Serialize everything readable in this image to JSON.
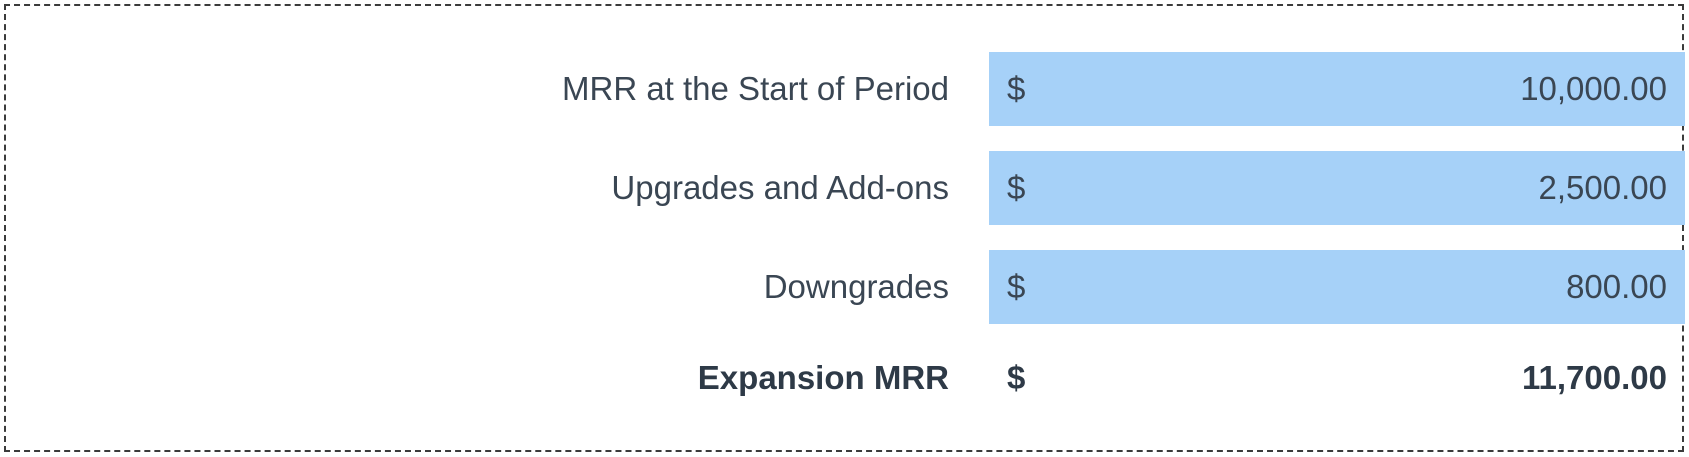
{
  "rows": [
    {
      "label": "MRR at the Start of Period",
      "currency": "$",
      "value": "10,000.00"
    },
    {
      "label": "Upgrades and Add-ons",
      "currency": "$",
      "value": "2,500.00"
    },
    {
      "label": "Downgrades",
      "currency": "$",
      "value": "800.00"
    }
  ],
  "total": {
    "label": "Expansion MRR",
    "currency": "$",
    "value": "11,700.00"
  },
  "colors": {
    "input_fill": "#a6d1f8",
    "text": "#3a4653",
    "border": "#3b3b3b"
  }
}
